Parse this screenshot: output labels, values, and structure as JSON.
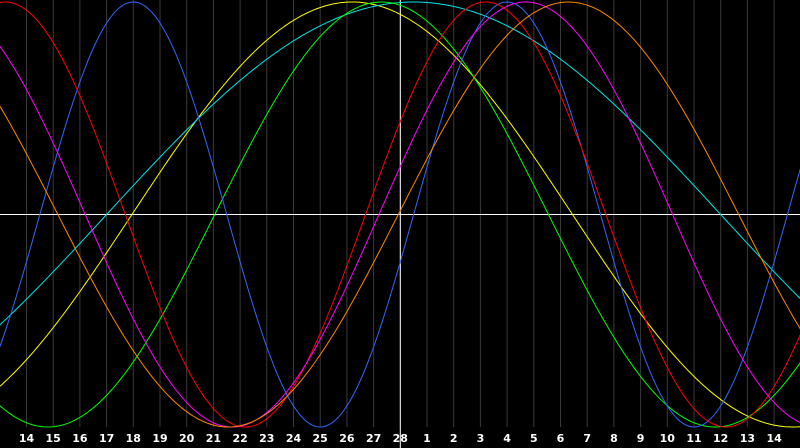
{
  "chart_data": {
    "type": "line",
    "title": "",
    "xlabel": "",
    "ylabel": "",
    "x_tick_labels": [
      "14",
      "15",
      "16",
      "17",
      "18",
      "19",
      "20",
      "21",
      "22",
      "23",
      "24",
      "25",
      "26",
      "27",
      "28",
      "1",
      "2",
      "3",
      "4",
      "5",
      "6",
      "7",
      "8",
      "9",
      "10",
      "11",
      "12",
      "13",
      "14"
    ],
    "x_range": [
      0,
      28.8
    ],
    "ylim": [
      -1,
      1
    ],
    "center_line_tick": "28",
    "grid": true,
    "series": [
      {
        "color": "#ffff00",
        "period": 33,
        "peak_at": 12.2
      },
      {
        "color": "#00e5e5",
        "period": 46,
        "peak_at": 14.5
      },
      {
        "color": "#00ff00",
        "period": 25,
        "peak_at": 13.3
      },
      {
        "color": "#3366ff",
        "period": 14,
        "peak_at": 18.0
      },
      {
        "color": "#ff0000",
        "period": 18,
        "peak_at": 17.2
      },
      {
        "color": "#ff00ff",
        "period": 22,
        "peak_at": 18.7
      },
      {
        "color": "#ff8800",
        "period": 25.5,
        "peak_at": 20.3
      }
    ]
  }
}
